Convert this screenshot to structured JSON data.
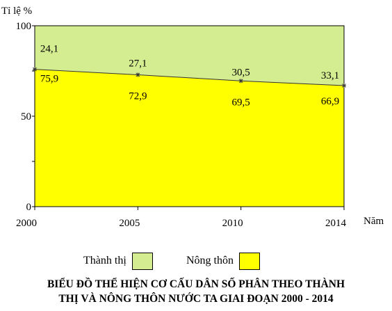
{
  "chart_data": {
    "type": "area",
    "stacked": true,
    "ylabel": "Tỉ lệ %",
    "xlabel": "Năm",
    "x": [
      "2000",
      "2005",
      "2010",
      "2014"
    ],
    "ylim": [
      0,
      100
    ],
    "yticks": [
      "0",
      "50",
      "100"
    ],
    "grid": false,
    "series": [
      {
        "name": "Nông thôn",
        "values": [
          75.9,
          72.9,
          69.5,
          66.9
        ],
        "labels": [
          "75,9",
          "72,9",
          "69,5",
          "66,9"
        ],
        "color": "#ffff00"
      },
      {
        "name": "Thành thị",
        "values": [
          24.1,
          27.1,
          30.5,
          33.1
        ],
        "labels": [
          "24,1",
          "27,1",
          "30,5",
          "33,1"
        ],
        "color": "#d4ed91"
      }
    ],
    "legend_position": "bottom",
    "title_line1": "BIỂU ĐỒ THỂ HIỆN CƠ CẤU DÂN SỐ PHÂN THEO THÀNH",
    "title_line2": "THỊ VÀ NÔNG THÔN NƯỚC TA GIAI ĐOẠN 2000 - 2014"
  }
}
